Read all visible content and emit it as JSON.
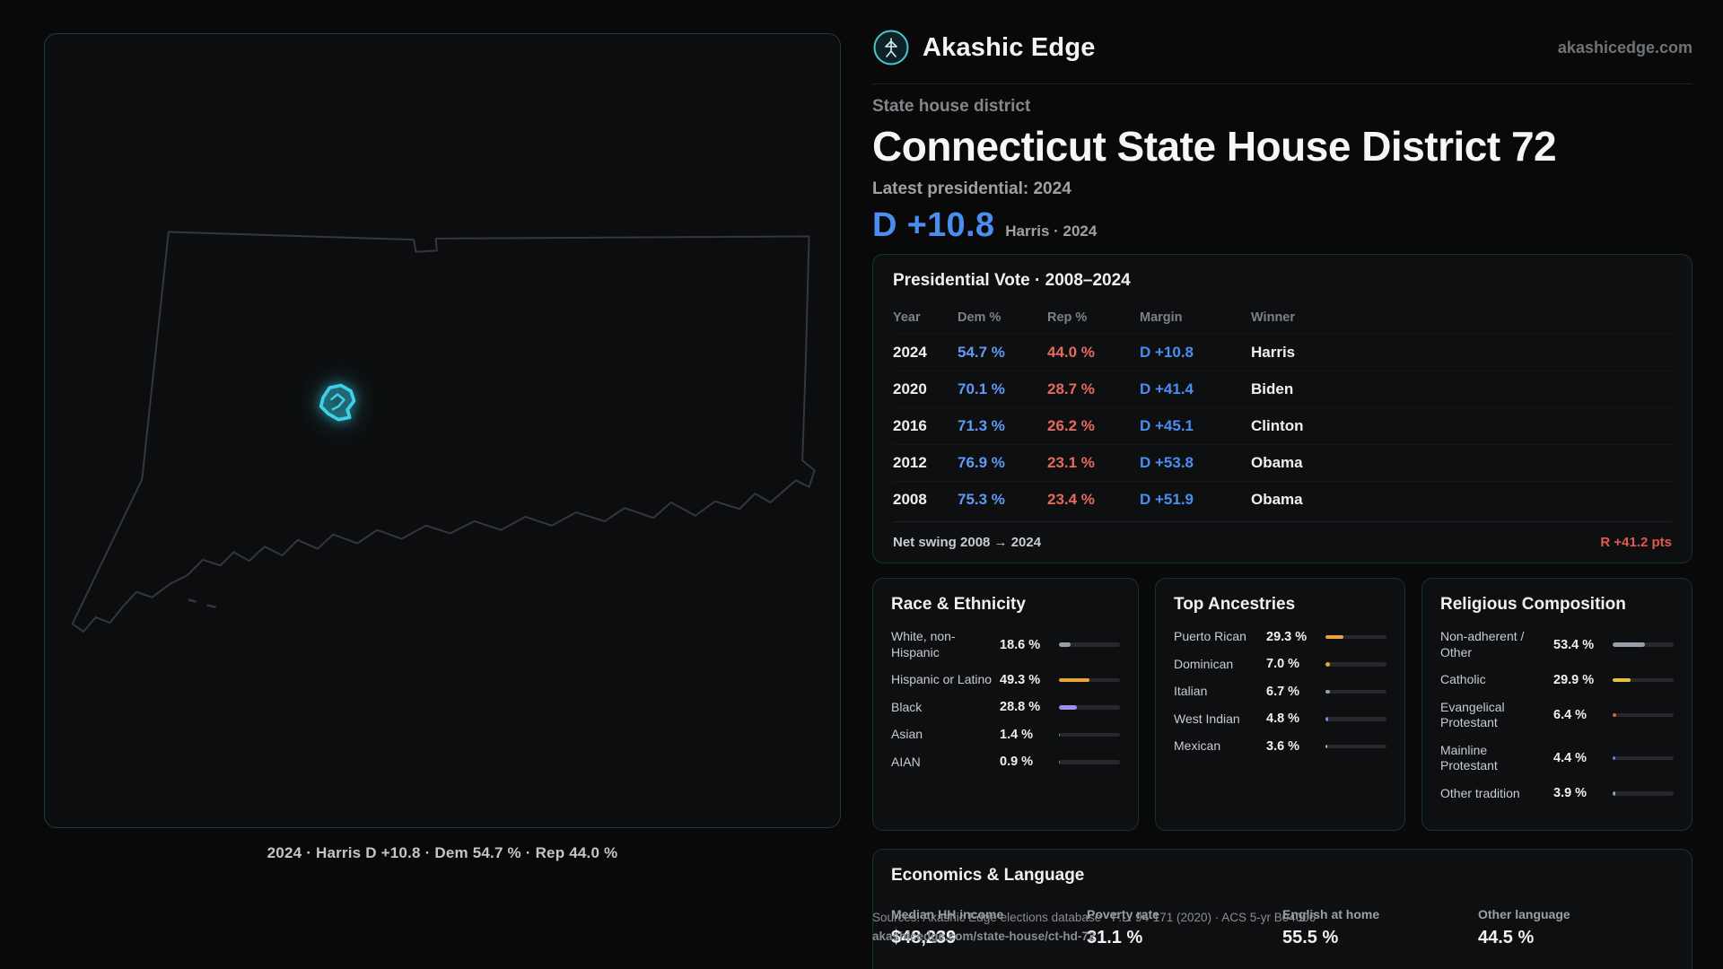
{
  "brand": {
    "name": "Akashic Edge",
    "domain": "akashicedge.com"
  },
  "page": {
    "kicker": "State house district",
    "title": "Connecticut State House District 72",
    "latest_label": "Latest presidential: 2024",
    "headline_margin": "D +10.8",
    "headline_context": "Harris · 2024"
  },
  "map": {
    "caption": "2024 · Harris D +10.8 · Dem 54.7 % · Rep 44.0 %"
  },
  "colors": {
    "dem_blue": "#4a8ef2",
    "rep_red": "#e8695e",
    "swing_red": "#e4584c",
    "district_cyan": "#3ed2ea",
    "bar_track": "#26282c"
  },
  "presidential": {
    "title": "Presidential Vote · 2008–2024",
    "columns": [
      "Year",
      "Dem %",
      "Rep %",
      "Margin",
      "Winner"
    ],
    "rows": [
      {
        "year": "2024",
        "dem": "54.7 %",
        "rep": "44.0 %",
        "margin": "D +10.8",
        "winner": "Harris"
      },
      {
        "year": "2020",
        "dem": "70.1 %",
        "rep": "28.7 %",
        "margin": "D +41.4",
        "winner": "Biden"
      },
      {
        "year": "2016",
        "dem": "71.3 %",
        "rep": "26.2 %",
        "margin": "D +45.1",
        "winner": "Clinton"
      },
      {
        "year": "2012",
        "dem": "76.9 %",
        "rep": "23.1 %",
        "margin": "D +53.8",
        "winner": "Obama"
      },
      {
        "year": "2008",
        "dem": "75.3 %",
        "rep": "23.4 %",
        "margin": "D +51.9",
        "winner": "Obama"
      }
    ],
    "net_swing_label": "Net swing 2008 → 2024",
    "net_swing_value": "R +41.2 pts"
  },
  "race": {
    "title": "Race & Ethnicity",
    "rows": [
      {
        "label": "White, non-Hispanic",
        "value": "18.6 %",
        "pct": 18.6,
        "color": "#9aa0a8"
      },
      {
        "label": "Hispanic or Latino",
        "value": "49.3 %",
        "pct": 49.3,
        "color": "#e8a43d"
      },
      {
        "label": "Black",
        "value": "28.8 %",
        "pct": 28.8,
        "color": "#a08df0"
      },
      {
        "label": "Asian",
        "value": "1.4 %",
        "pct": 1.4,
        "color": "#46b27a"
      },
      {
        "label": "AIAN",
        "value": "0.9 %",
        "pct": 0.9,
        "color": "#e05c52"
      }
    ]
  },
  "ancestries": {
    "title": "Top Ancestries",
    "rows": [
      {
        "label": "Puerto Rican",
        "value": "29.3 %",
        "pct": 29.3,
        "color": "#e8a43d"
      },
      {
        "label": "Dominican",
        "value": "7.0 %",
        "pct": 7.0,
        "color": "#e8a43d"
      },
      {
        "label": "Italian",
        "value": "6.7 %",
        "pct": 6.7,
        "color": "#9aa0a8"
      },
      {
        "label": "West Indian",
        "value": "4.8 %",
        "pct": 4.8,
        "color": "#7b86ee"
      },
      {
        "label": "Mexican",
        "value": "3.6 %",
        "pct": 3.6,
        "color": "#e8a43d"
      }
    ]
  },
  "religion": {
    "title": "Religious Composition",
    "rows": [
      {
        "label": "Non-adherent / Other",
        "value": "53.4 %",
        "pct": 53.4,
        "color": "#9aa0a8"
      },
      {
        "label": "Catholic",
        "value": "29.9 %",
        "pct": 29.9,
        "color": "#e3c23f"
      },
      {
        "label": "Evangelical Protestant",
        "value": "6.4 %",
        "pct": 6.4,
        "color": "#e05c52"
      },
      {
        "label": "Mainline Protestant",
        "value": "4.4 %",
        "pct": 4.4,
        "color": "#5b7ef0"
      },
      {
        "label": "Other tradition",
        "value": "3.9 %",
        "pct": 3.9,
        "color": "#9aa0a8"
      }
    ]
  },
  "economics": {
    "title": "Economics & Language",
    "stats": [
      {
        "label": "Median HH income",
        "value": "$48,239"
      },
      {
        "label": "Poverty rate",
        "value": "31.1 %"
      },
      {
        "label": "English at home",
        "value": "55.5 %"
      },
      {
        "label": "Other language",
        "value": "44.5 %"
      }
    ]
  },
  "footer": {
    "sources": "Sources: Akashic Edge elections database · P.L. 94-171 (2020) · ACS 5-yr B04006",
    "permalink": "akashicedge.com/state-house/ct-hd-72"
  }
}
